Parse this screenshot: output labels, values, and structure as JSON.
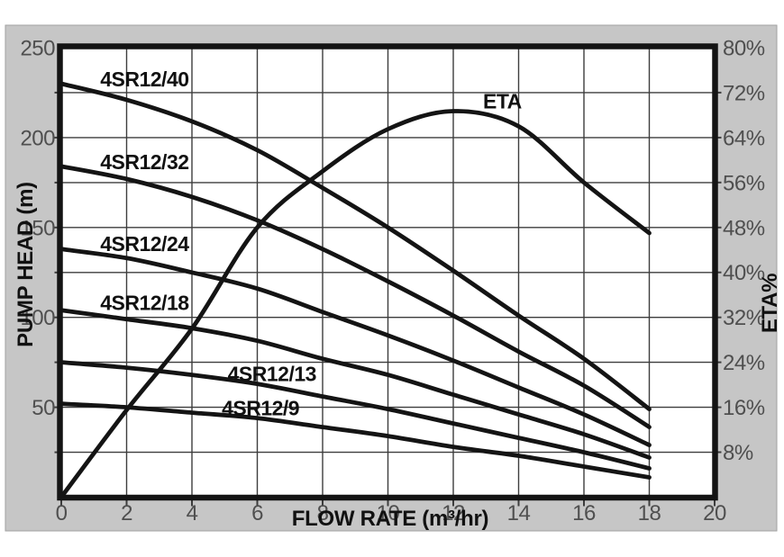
{
  "styles": {
    "panel_color": "#c6c6c6",
    "panel_border": "#a2a2a2",
    "plot_bg": "#ffffff",
    "grid_color": "#3d3d3d",
    "curve_color": "#141414",
    "border_color": "#141414",
    "tick_text_color": "#4f4f4f",
    "label_text_color": "#111111"
  },
  "chart_data": {
    "type": "line",
    "title": "",
    "grid": true,
    "legend_position": "none",
    "x": [
      0,
      2,
      4,
      6,
      8,
      10,
      12,
      14,
      16,
      18
    ],
    "x_axis": {
      "label": "FLOW RATE (m³/hr)",
      "min": 0,
      "max": 20,
      "grid_step": 2,
      "tick_values": [
        0,
        2,
        4,
        6,
        8,
        10,
        12,
        14,
        16,
        18,
        20
      ],
      "tick_labels": [
        "0",
        "2",
        "4",
        "6",
        "8",
        "10",
        "12",
        "14",
        "16",
        "18",
        "20"
      ]
    },
    "y_axis_left": {
      "label": "PUMP HEAD (m)",
      "min": 0,
      "max": 250,
      "grid_step": 25,
      "tick_values": [
        250,
        200,
        150,
        100,
        50
      ],
      "tick_labels": [
        "250",
        "200",
        "150",
        "100",
        "50"
      ]
    },
    "y_axis_right": {
      "label": "ETA%",
      "min": 0,
      "max": 80,
      "grid_step": 8,
      "tick_values": [
        80,
        72,
        64,
        56,
        48,
        40,
        32,
        24,
        16,
        8
      ],
      "tick_labels": [
        "80%",
        "72%",
        "64%",
        "56%",
        "48%",
        "40%",
        "32%",
        "24%",
        "16%",
        "8%"
      ]
    },
    "series": [
      {
        "name": "4SR12/40",
        "axis": "left",
        "values": [
          230,
          221,
          209,
          193,
          172,
          150,
          126,
          101,
          77,
          49
        ],
        "label": {
          "text": "4SR12/40",
          "x": 2.55,
          "y": 232.5
        }
      },
      {
        "name": "4SR12/32",
        "axis": "left",
        "values": [
          184,
          177,
          167,
          154,
          138,
          120,
          101,
          81,
          62,
          39
        ],
        "label": {
          "text": "4SR12/32",
          "x": 2.55,
          "y": 186.5
        }
      },
      {
        "name": "4SR12/24",
        "axis": "left",
        "values": [
          138,
          133,
          125,
          116,
          103,
          90,
          76,
          61,
          46,
          29
        ],
        "label": {
          "text": "4SR12/24",
          "x": 2.55,
          "y": 141
        }
      },
      {
        "name": "4SR12/18",
        "axis": "left",
        "values": [
          104,
          99,
          94,
          87,
          77,
          68,
          57,
          46,
          35,
          22
        ],
        "label": {
          "text": "4SR12/18",
          "x": 2.55,
          "y": 108
        }
      },
      {
        "name": "4SR12/13",
        "axis": "left",
        "values": [
          75,
          72,
          68,
          63,
          56,
          49,
          41,
          33,
          25,
          16
        ],
        "label": {
          "text": "4SR12/13",
          "x": 6.45,
          "y": 68.5
        }
      },
      {
        "name": "4SR12/9",
        "axis": "left",
        "values": [
          52,
          50,
          47,
          44,
          39,
          34,
          28,
          23,
          17,
          11
        ],
        "label": {
          "text": "4SR12/9",
          "x": 6.1,
          "y": 49.5
        }
      },
      {
        "name": "ETA",
        "axis": "right",
        "values": [
          0,
          15.5,
          30,
          48,
          58,
          65.5,
          68.7,
          66,
          56,
          47
        ],
        "label": {
          "text": "ETA",
          "x": 13.5,
          "y": 70.5
        }
      }
    ]
  }
}
